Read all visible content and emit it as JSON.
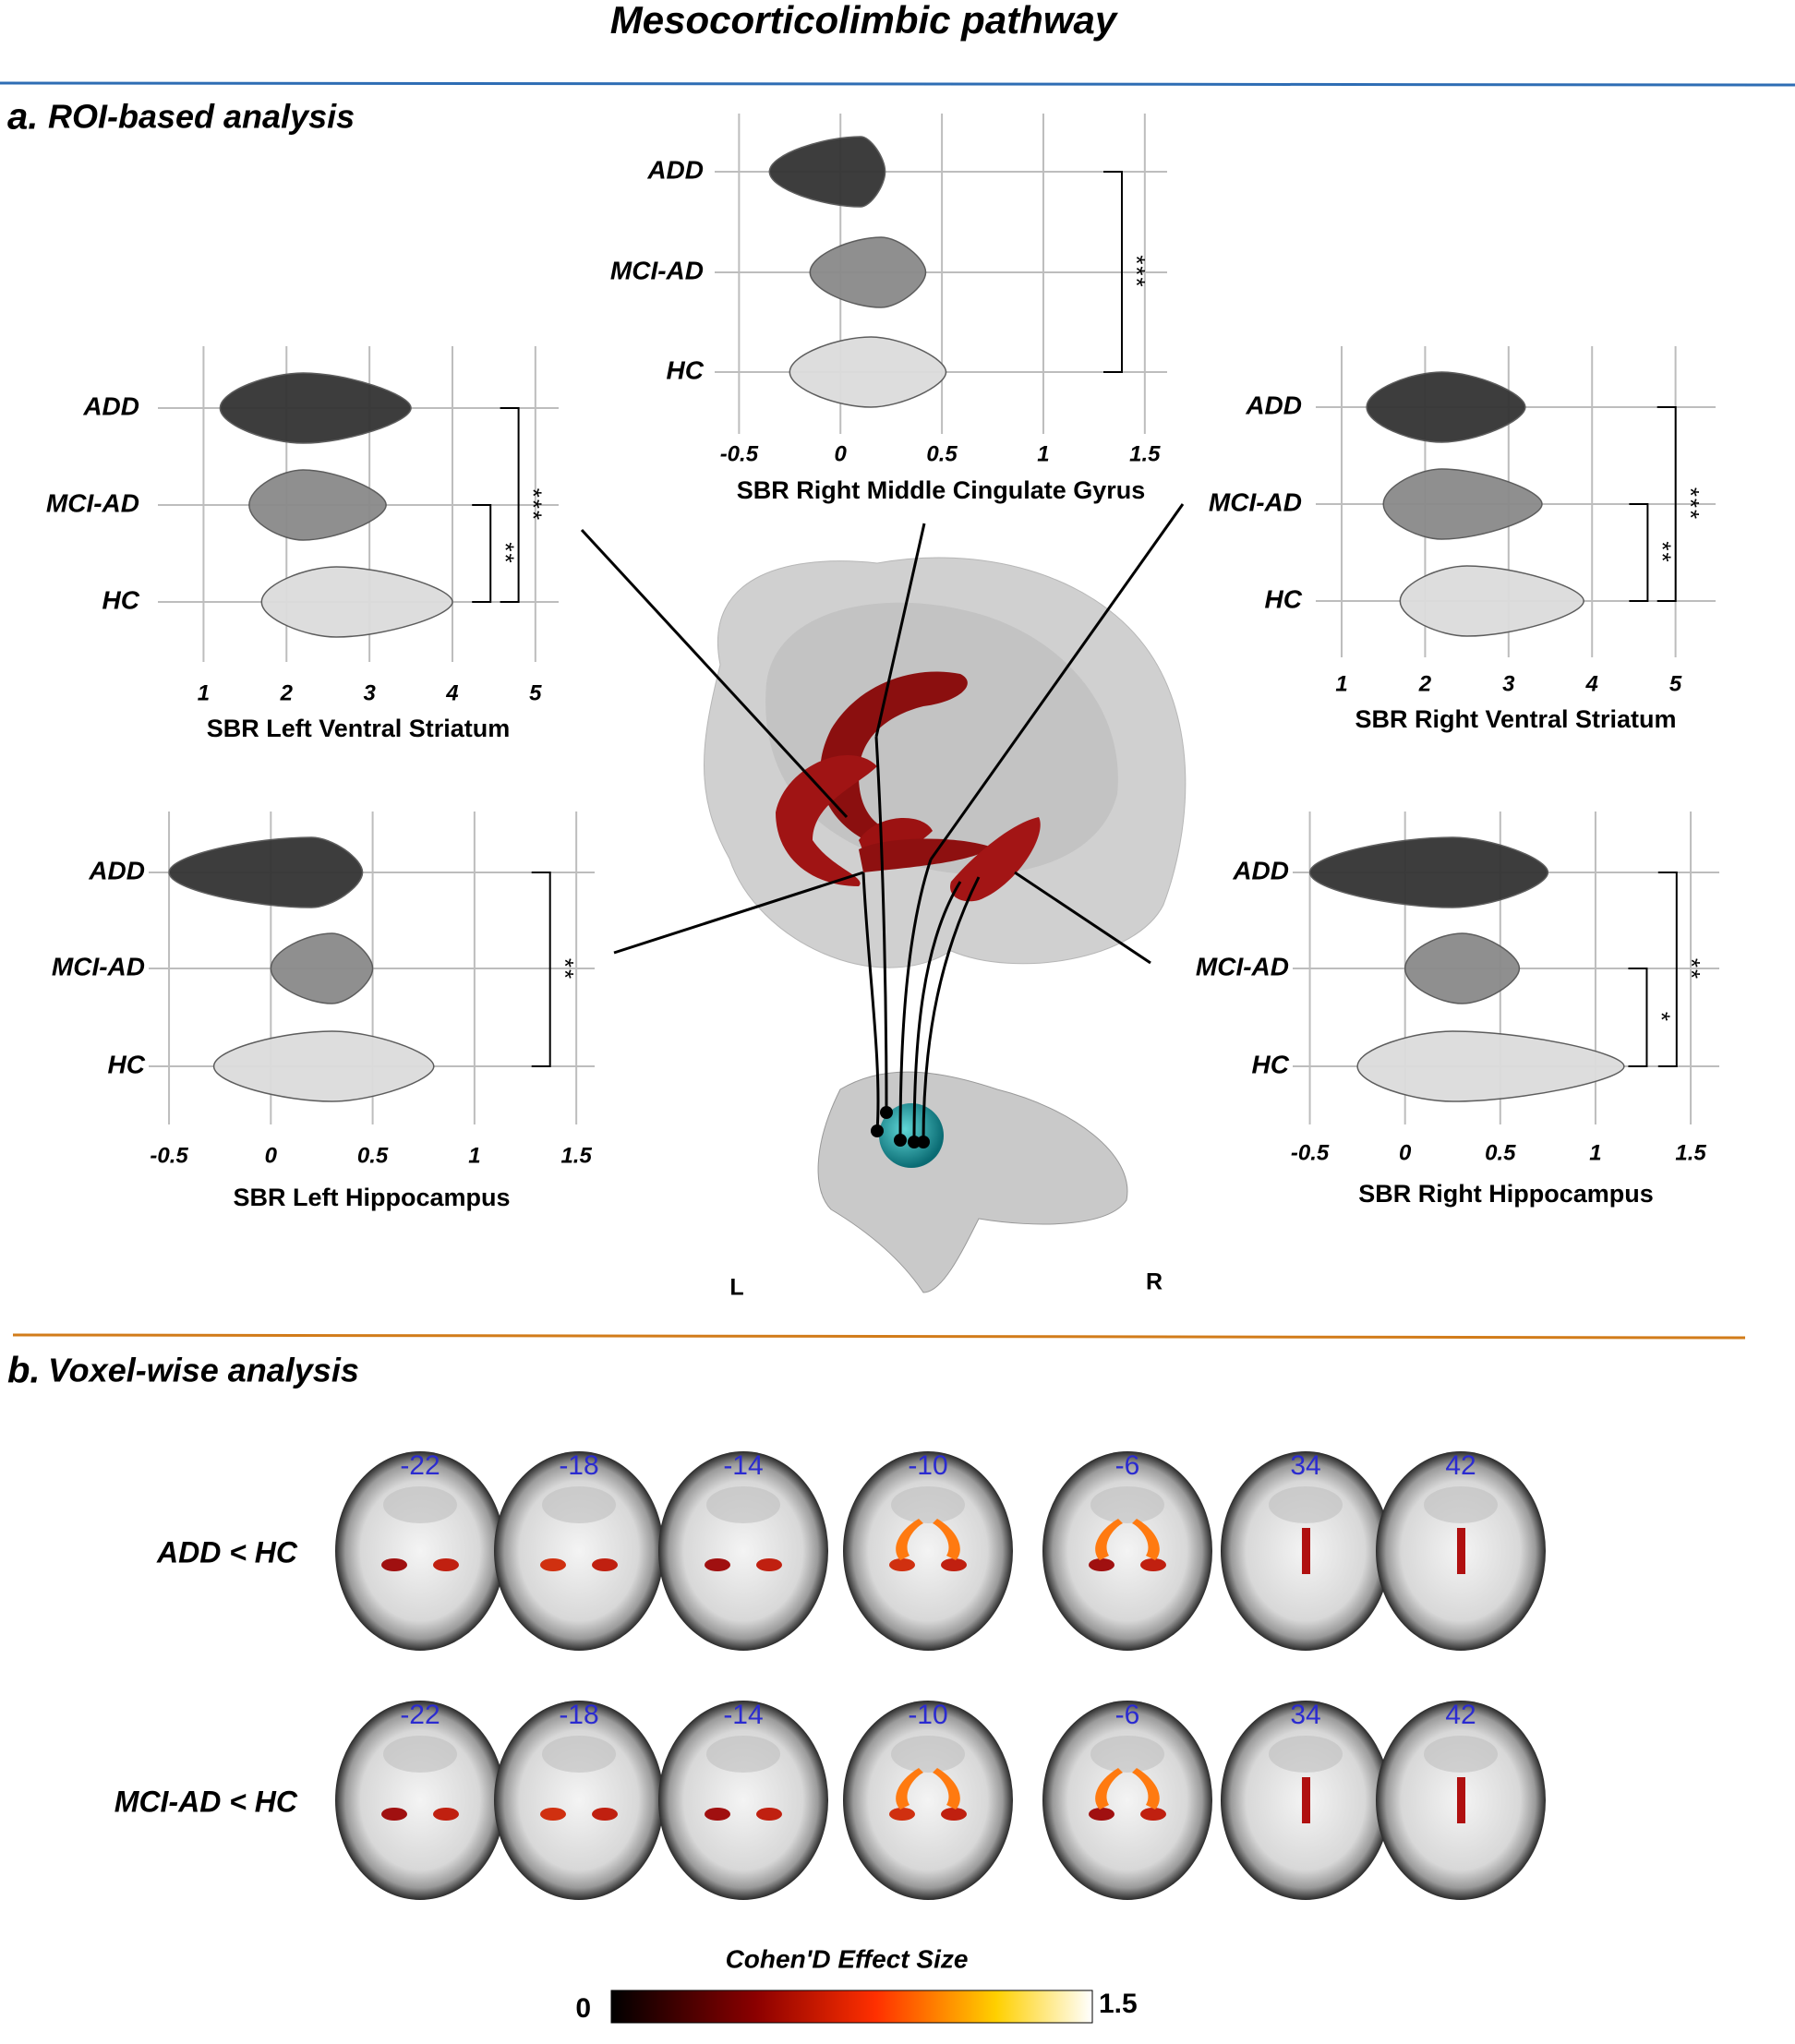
{
  "title": "Mesocorticolimbic pathway",
  "panel_a": {
    "label": "a.",
    "title": "ROI-based analysis",
    "left": "L",
    "right": "R"
  },
  "chart_data": [
    {
      "type": "violin",
      "xlabel": "SBR Right Middle Cingulate Gyrus",
      "xlim": [
        -0.62,
        1.61
      ],
      "xticks": [
        -0.5,
        0,
        0.5,
        1,
        1.5
      ],
      "grid": true,
      "series": [
        {
          "name": "ADD",
          "color": "#333333",
          "min": -0.35,
          "mode": 0.1,
          "max": 0.22
        },
        {
          "name": "MCI-AD",
          "color": "#8a8a8a",
          "min": -0.15,
          "mode": 0.2,
          "max": 0.42
        },
        {
          "name": "HC",
          "color": "#dcdcdc",
          "min": -0.25,
          "mode": 0.15,
          "max": 0.52
        }
      ],
      "significance": [
        "***"
      ]
    },
    {
      "type": "violin",
      "xlabel": "SBR Left Ventral Striatum",
      "xlim": [
        0.45,
        5.28
      ],
      "xticks": [
        1,
        2,
        3,
        4,
        5
      ],
      "grid": true,
      "series": [
        {
          "name": "ADD",
          "color": "#333333",
          "min": 1.2,
          "mode": 2.2,
          "max": 3.5
        },
        {
          "name": "MCI-AD",
          "color": "#8a8a8a",
          "min": 1.55,
          "mode": 2.2,
          "max": 3.2
        },
        {
          "name": "HC",
          "color": "#dcdcdc",
          "min": 1.7,
          "mode": 2.6,
          "max": 4.0
        }
      ],
      "significance": [
        "***",
        "**"
      ]
    },
    {
      "type": "violin",
      "xlabel": "SBR Right Ventral Striatum",
      "xlim": [
        0.69,
        5.48
      ],
      "xticks": [
        1,
        2,
        3,
        4,
        5
      ],
      "grid": true,
      "series": [
        {
          "name": "ADD",
          "color": "#333333",
          "min": 1.3,
          "mode": 2.2,
          "max": 3.2
        },
        {
          "name": "MCI-AD",
          "color": "#8a8a8a",
          "min": 1.5,
          "mode": 2.2,
          "max": 3.4
        },
        {
          "name": "HC",
          "color": "#dcdcdc",
          "min": 1.7,
          "mode": 2.5,
          "max": 3.9
        }
      ],
      "significance": [
        "***",
        "**"
      ]
    },
    {
      "type": "violin",
      "xlabel": "SBR Left Hippocampus",
      "xlim": [
        -0.6,
        1.59
      ],
      "xticks": [
        -0.5,
        0,
        0.5,
        1,
        1.5
      ],
      "grid": true,
      "series": [
        {
          "name": "ADD",
          "color": "#333333",
          "min": -0.5,
          "mode": 0.2,
          "max": 0.45
        },
        {
          "name": "MCI-AD",
          "color": "#8a8a8a",
          "min": 0.0,
          "mode": 0.3,
          "max": 0.5
        },
        {
          "name": "HC",
          "color": "#dcdcdc",
          "min": -0.28,
          "mode": 0.3,
          "max": 0.8
        }
      ],
      "significance": [
        "**"
      ]
    },
    {
      "type": "violin",
      "xlabel": "SBR Right Hippocampus",
      "xlim": [
        -0.59,
        1.65
      ],
      "xticks": [
        -0.5,
        0,
        0.5,
        1,
        1.5
      ],
      "grid": true,
      "series": [
        {
          "name": "ADD",
          "color": "#333333",
          "min": -0.5,
          "mode": 0.25,
          "max": 0.75
        },
        {
          "name": "MCI-AD",
          "color": "#8a8a8a",
          "min": 0.0,
          "mode": 0.3,
          "max": 0.6
        },
        {
          "name": "HC",
          "color": "#dcdcdc",
          "min": -0.25,
          "mode": 0.25,
          "max": 1.15
        }
      ],
      "significance": [
        "**",
        "*"
      ]
    }
  ],
  "panel_b": {
    "label": "b.",
    "title": "Voxel-wise analysis",
    "rows": [
      "ADD < HC",
      "MCI-AD < HC"
    ],
    "slices": [
      -22,
      -18,
      -14,
      -10,
      -6,
      34,
      42
    ],
    "colorbar": {
      "title": "Cohen'D Effect Size",
      "range": [
        0,
        1.5
      ]
    }
  }
}
